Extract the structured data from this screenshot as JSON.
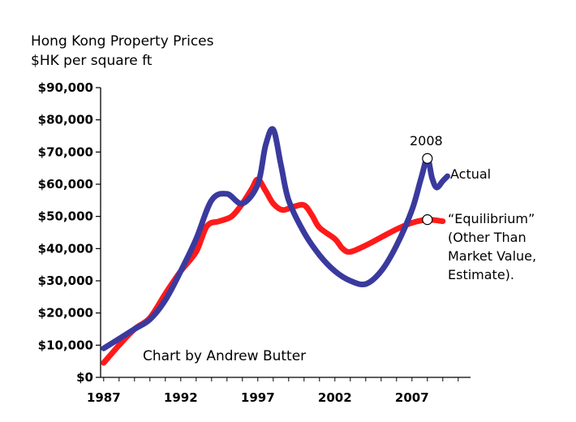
{
  "chart_data": {
    "type": "line",
    "title": "Hong Kong Property Prices",
    "subtitle": "$HK per square ft",
    "xlabel": "",
    "ylabel": "",
    "xlim": [
      1986.8,
      2010.8
    ],
    "ylim": [
      0,
      90000
    ],
    "x_ticks": [
      1987,
      1992,
      1997,
      2002,
      2007
    ],
    "x_tick_labels": [
      "1987",
      "1992",
      "1997",
      "2002",
      "2007"
    ],
    "y_ticks": [
      0,
      10000,
      20000,
      30000,
      40000,
      50000,
      60000,
      70000,
      80000,
      90000
    ],
    "y_tick_labels": [
      "$0",
      "$10,000",
      "$20,000",
      "$30,000",
      "$40,000",
      "$50,000",
      "$60,000",
      "$70,000",
      "$80,000",
      "$90,000"
    ],
    "grid": false,
    "series": [
      {
        "name": "Actual",
        "color": "#3a3a9e",
        "x": [
          1987,
          1988,
          1989,
          1990,
          1991,
          1992,
          1993,
          1994,
          1995,
          1996,
          1997,
          1997.5,
          1998,
          1998.5,
          1999,
          2000,
          2001,
          2002,
          2003,
          2004,
          2005,
          2006,
          2007,
          2007.6,
          2008,
          2008.3,
          2008.6,
          2009,
          2009.3
        ],
        "y": [
          9000,
          12000,
          15000,
          18000,
          24000,
          33000,
          43000,
          55000,
          57000,
          54000,
          60000,
          72000,
          77000,
          66000,
          55000,
          45000,
          38000,
          33000,
          30000,
          29000,
          33000,
          41000,
          52000,
          62000,
          68000,
          62000,
          59000,
          61000,
          62500
        ]
      },
      {
        "name": "\"Equilibrium\"",
        "color": "#ff1a1a",
        "x": [
          1987,
          1988,
          1989,
          1990,
          1991,
          1992,
          1993,
          1993.7,
          1994.5,
          1995.3,
          1996,
          1996.6,
          1997,
          1997.5,
          1998,
          1998.6,
          1999.3,
          2000,
          2000.5,
          2001,
          2002,
          2002.5,
          2003,
          2004,
          2005,
          2006,
          2007,
          2008,
          2009
        ],
        "y": [
          4500,
          10000,
          15000,
          18500,
          26000,
          33000,
          39000,
          47000,
          48500,
          50000,
          54000,
          58500,
          61500,
          58000,
          54000,
          52000,
          53000,
          53500,
          50500,
          46500,
          43000,
          40000,
          39000,
          41000,
          43500,
          46000,
          48000,
          49000,
          48500
        ]
      }
    ],
    "annotations": {
      "marker_label": "2008",
      "actual_label": "Actual",
      "equilibrium_label_lines": [
        "“Equilibrium”",
        "(Other Than",
        "Market Value,",
        "Estimate)."
      ],
      "credit": "Chart by Andrew Butter"
    }
  }
}
